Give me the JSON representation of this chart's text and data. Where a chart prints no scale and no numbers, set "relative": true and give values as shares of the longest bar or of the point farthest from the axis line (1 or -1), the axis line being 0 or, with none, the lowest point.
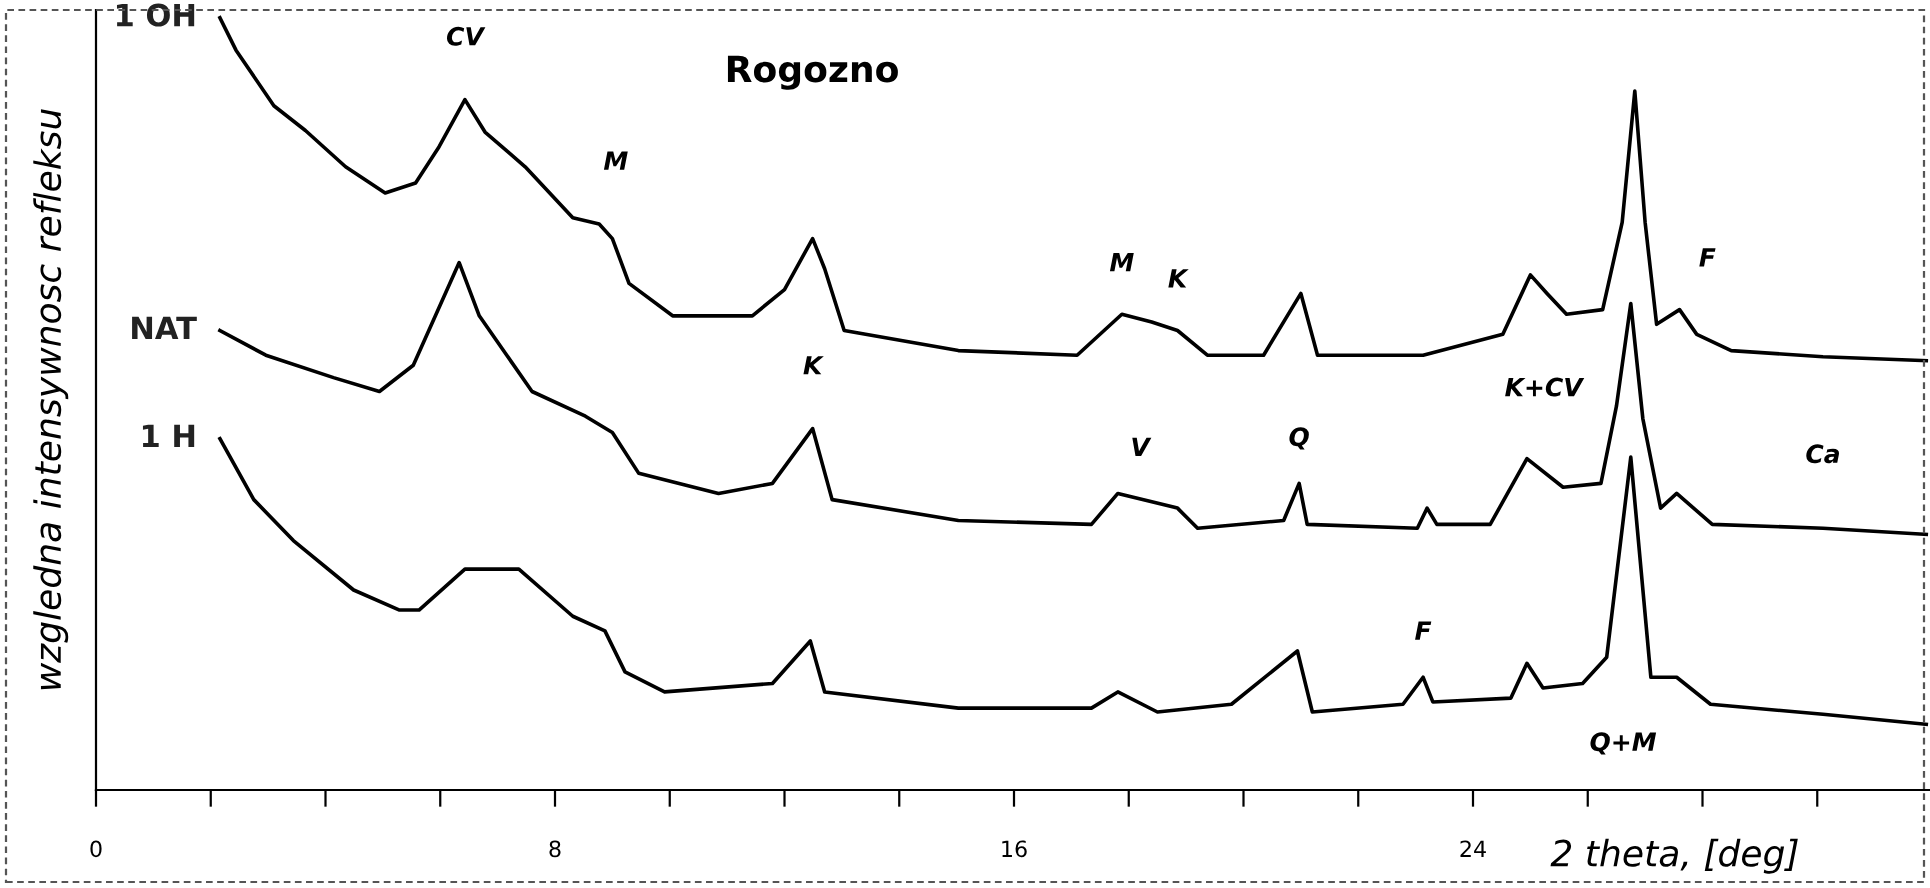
{
  "chart_data": {
    "type": "line",
    "relative": true,
    "title": "Rogozno",
    "xlabel": "2 theta, [deg]",
    "ylabel": "wzgledna intensywnosc refleksu",
    "xlim": [
      0,
      32
    ],
    "xticks": [
      0,
      {
        "value": 2,
        "label": null
      },
      {
        "value": 4,
        "label": null
      },
      {
        "value": 6,
        "label": null
      },
      8,
      {
        "value": 10,
        "label": null
      },
      {
        "value": 12,
        "label": null
      },
      {
        "value": 14,
        "label": null
      },
      16,
      {
        "value": 18,
        "label": null
      },
      {
        "value": 20,
        "label": null
      },
      {
        "value": 22,
        "label": null
      },
      24,
      {
        "value": 26,
        "label": null
      },
      {
        "value": 28,
        "label": null
      },
      {
        "value": 30,
        "label": null
      }
    ],
    "grid": false,
    "marker": "none",
    "line_style": "solid",
    "series": [
      {
        "name": "1 OH",
        "color": "#000000",
        "x": [
          2.16,
          2.44,
          3.1,
          3.65,
          4.35,
          5.04,
          5.57,
          5.98,
          6.43,
          6.78,
          7.48,
          8.31,
          8.77,
          9.0,
          9.29,
          10.05,
          11.44,
          12.0,
          12.49,
          12.7,
          13.04,
          15.03,
          17.1,
          17.88,
          18.4,
          18.85,
          19.37,
          20.35,
          21.0,
          21.29,
          23.13,
          24.52,
          25.0,
          25.29,
          25.63,
          26.26,
          26.6,
          26.82,
          27.0,
          27.2,
          27.6,
          27.9,
          28.5,
          30.1,
          31.9
        ],
        "values": [
          1.0,
          0.958,
          0.886,
          0.854,
          0.807,
          0.773,
          0.786,
          0.833,
          0.894,
          0.852,
          0.807,
          0.741,
          0.733,
          0.714,
          0.656,
          0.614,
          0.614,
          0.648,
          0.714,
          0.675,
          0.595,
          0.569,
          0.563,
          0.616,
          0.606,
          0.595,
          0.563,
          0.563,
          0.643,
          0.563,
          0.563,
          0.59,
          0.667,
          0.643,
          0.616,
          0.622,
          0.735,
          0.905,
          0.735,
          0.603,
          0.622,
          0.59,
          0.569,
          0.561,
          0.556
        ]
      },
      {
        "name": "NAT",
        "color": "#000000",
        "x": [
          2.16,
          2.96,
          4.14,
          4.94,
          5.53,
          6.33,
          6.68,
          7.6,
          8.53,
          9.0,
          9.46,
          10.85,
          11.79,
          12.49,
          12.83,
          15.03,
          17.35,
          17.81,
          18.85,
          19.2,
          20.7,
          20.97,
          21.11,
          23.03,
          23.2,
          23.37,
          24.3,
          24.94,
          25.57,
          26.23,
          26.5,
          26.75,
          26.96,
          27.27,
          27.55,
          28.17,
          30.1,
          31.9
        ],
        "values": [
          0.595,
          0.563,
          0.534,
          0.516,
          0.55,
          0.683,
          0.614,
          0.516,
          0.484,
          0.463,
          0.41,
          0.384,
          0.397,
          0.468,
          0.376,
          0.349,
          0.344,
          0.384,
          0.365,
          0.339,
          0.349,
          0.397,
          0.344,
          0.339,
          0.365,
          0.344,
          0.344,
          0.429,
          0.392,
          0.397,
          0.497,
          0.63,
          0.481,
          0.365,
          0.384,
          0.344,
          0.339,
          0.331
        ]
      },
      {
        "name": "1 H",
        "color": "#000000",
        "x": [
          2.16,
          2.75,
          3.44,
          4.49,
          5.29,
          5.63,
          6.43,
          7.37,
          8.31,
          8.87,
          9.22,
          9.91,
          11.79,
          12.45,
          12.7,
          15.03,
          17.35,
          17.81,
          18.5,
          19.79,
          20.94,
          21.2,
          22.78,
          23.13,
          23.3,
          24.66,
          24.94,
          25.22,
          25.91,
          26.33,
          26.75,
          27.1,
          27.55,
          28.14,
          30.1,
          31.9
        ],
        "values": [
          0.455,
          0.376,
          0.323,
          0.259,
          0.233,
          0.233,
          0.286,
          0.286,
          0.225,
          0.206,
          0.153,
          0.127,
          0.138,
          0.193,
          0.127,
          0.106,
          0.106,
          0.127,
          0.101,
          0.111,
          0.18,
          0.101,
          0.111,
          0.146,
          0.114,
          0.119,
          0.164,
          0.132,
          0.138,
          0.172,
          0.431,
          0.146,
          0.146,
          0.111,
          0.098,
          0.085
        ]
      }
    ],
    "annotations": [
      {
        "text": "CV",
        "x": 6.43,
        "y": 0.894
      },
      {
        "text": "M",
        "x": 8.77,
        "y": 0.733
      },
      {
        "text": "M",
        "x": 17.88,
        "y": 0.616
      },
      {
        "text": "K",
        "x": 18.85,
        "y": 0.595
      },
      {
        "text": "K",
        "x": 12.49,
        "y": 0.468
      },
      {
        "text": "V",
        "x": 17.81,
        "y": 0.384
      },
      {
        "text": "Q",
        "x": 20.97,
        "y": 0.397
      },
      {
        "text": "K+CV",
        "x": 24.94,
        "y": 0.429
      },
      {
        "text": "F",
        "x": 27.6,
        "y": 0.622
      },
      {
        "text": "Ca",
        "x": 30.1,
        "y": 0.339
      },
      {
        "text": "F",
        "x": 23.13,
        "y": 0.146
      },
      {
        "text": "Q+M",
        "x": 27.1,
        "y": 0.146
      }
    ]
  }
}
